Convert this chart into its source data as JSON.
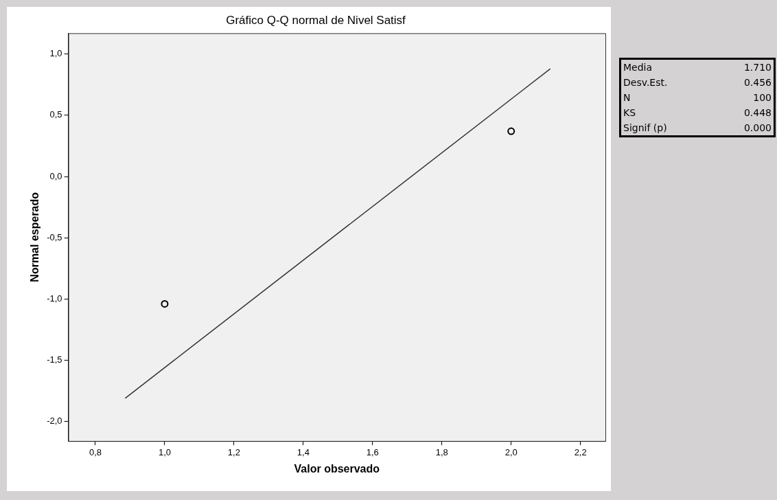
{
  "chart_data": {
    "type": "scatter",
    "title": "Gráfico Q-Q normal de Nivel Satisf",
    "xlabel": "Valor observado",
    "ylabel": "Normal esperado",
    "xlim": [
      0.722,
      2.272
    ],
    "xticks": [
      {
        "value": 0.8,
        "label": "0,8"
      },
      {
        "value": 1.0,
        "label": "1,0"
      },
      {
        "value": 1.2,
        "label": "1,2"
      },
      {
        "value": 1.4,
        "label": "1,4"
      },
      {
        "value": 1.6,
        "label": "1,6"
      },
      {
        "value": 1.8,
        "label": "1,8"
      },
      {
        "value": 2.0,
        "label": "2,0"
      },
      {
        "value": 2.2,
        "label": "2,2"
      }
    ],
    "ylim": [
      -2.16,
      1.17
    ],
    "yticks": [
      {
        "value": -2.0,
        "label": "-2,0"
      },
      {
        "value": -1.5,
        "label": "-1,5"
      },
      {
        "value": -1.0,
        "label": "-1,0"
      },
      {
        "value": -0.5,
        "label": "-0,5"
      },
      {
        "value": 0,
        "label": "0,0"
      },
      {
        "value": 0.5,
        "label": "0,5"
      },
      {
        "value": 1.0,
        "label": "1,0"
      }
    ],
    "grid": false,
    "legend": false,
    "marker": "circle",
    "series": [
      {
        "type": "scatter",
        "color": "#000000",
        "x": [
          1.0,
          2.0
        ],
        "values": [
          -1.04,
          0.37
        ]
      },
      {
        "type": "line",
        "color": "#333333",
        "x": [
          0.886,
          2.113
        ],
        "values": [
          -1.81,
          0.88
        ],
        "marker": "none",
        "line_style": "solid"
      }
    ],
    "annotations": [
      "Media",
      "1.710",
      "Desv.Est.",
      "0.456",
      "N",
      "100",
      "KS",
      "0.448",
      "Signif (p)",
      "0.000"
    ]
  }
}
